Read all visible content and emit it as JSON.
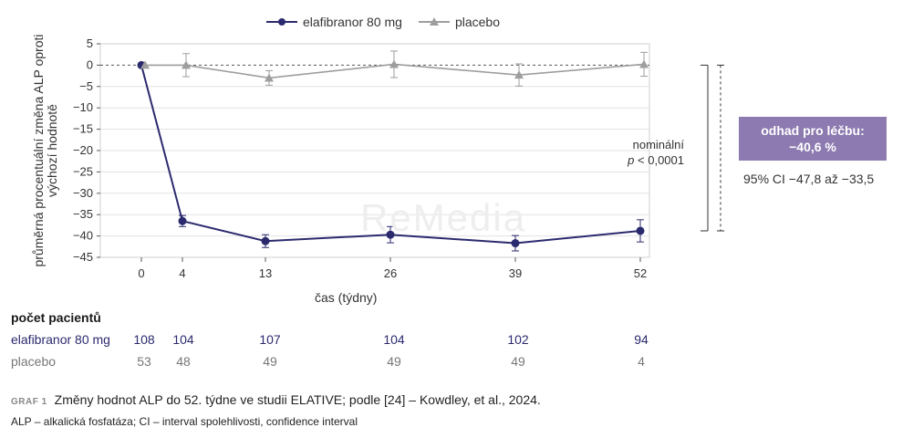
{
  "chart_data": {
    "type": "line",
    "x": [
      0,
      4,
      13,
      26,
      39,
      52
    ],
    "xlabel": "čas (týdny)",
    "ylabel": "průměrná procentuální změna ALP oproti výchozí hodnotě",
    "ylim": [
      -45,
      5
    ],
    "yticks": [
      5,
      0,
      -5,
      -10,
      -15,
      -20,
      -25,
      -30,
      -35,
      -40,
      -45
    ],
    "grid": true,
    "legend_position": "top",
    "series": [
      {
        "name": "elafibranor 80 mg",
        "color": "#2b2a6e",
        "marker": "circle",
        "values": [
          0,
          -36.5,
          -41.2,
          -39.7,
          -41.7,
          -38.8
        ],
        "err": [
          0,
          1.3,
          1.5,
          1.9,
          1.8,
          2.6
        ]
      },
      {
        "name": "placebo",
        "color": "#9e9e9e",
        "marker": "triangle",
        "values": [
          0,
          0,
          -3.0,
          0.2,
          -2.3,
          0.2
        ],
        "err": [
          0,
          2.7,
          1.7,
          3.1,
          2.6,
          2.8
        ]
      }
    ],
    "annotations": {
      "pvalue_line1": "nominální",
      "pvalue_line2": "< 0,0001",
      "pvalue_p": "p",
      "effect_line1": "odhad pro léčbu:",
      "effect_line2": "−40,6 %",
      "ci": "95% CI −47,8 až −33,5"
    }
  },
  "patients": {
    "title": "počet pacientů",
    "rows": [
      {
        "label": "elafibranor 80 mg",
        "values": [
          "108",
          "104",
          "107",
          "104",
          "102",
          "94"
        ]
      },
      {
        "label": "placebo",
        "values": [
          "53",
          "48",
          "49",
          "49",
          "49",
          "4"
        ]
      }
    ]
  },
  "watermark": "ReMedia",
  "caption": {
    "tag": "GRAF 1",
    "text": "Změny hodnot ALP do 52. týdne ve studii ELATIVE; podle [24] – Kowdley, et al., 2024."
  },
  "footnote": "ALP – alkalická fosfatáza; CI – interval spolehlivosti, confidence interval"
}
